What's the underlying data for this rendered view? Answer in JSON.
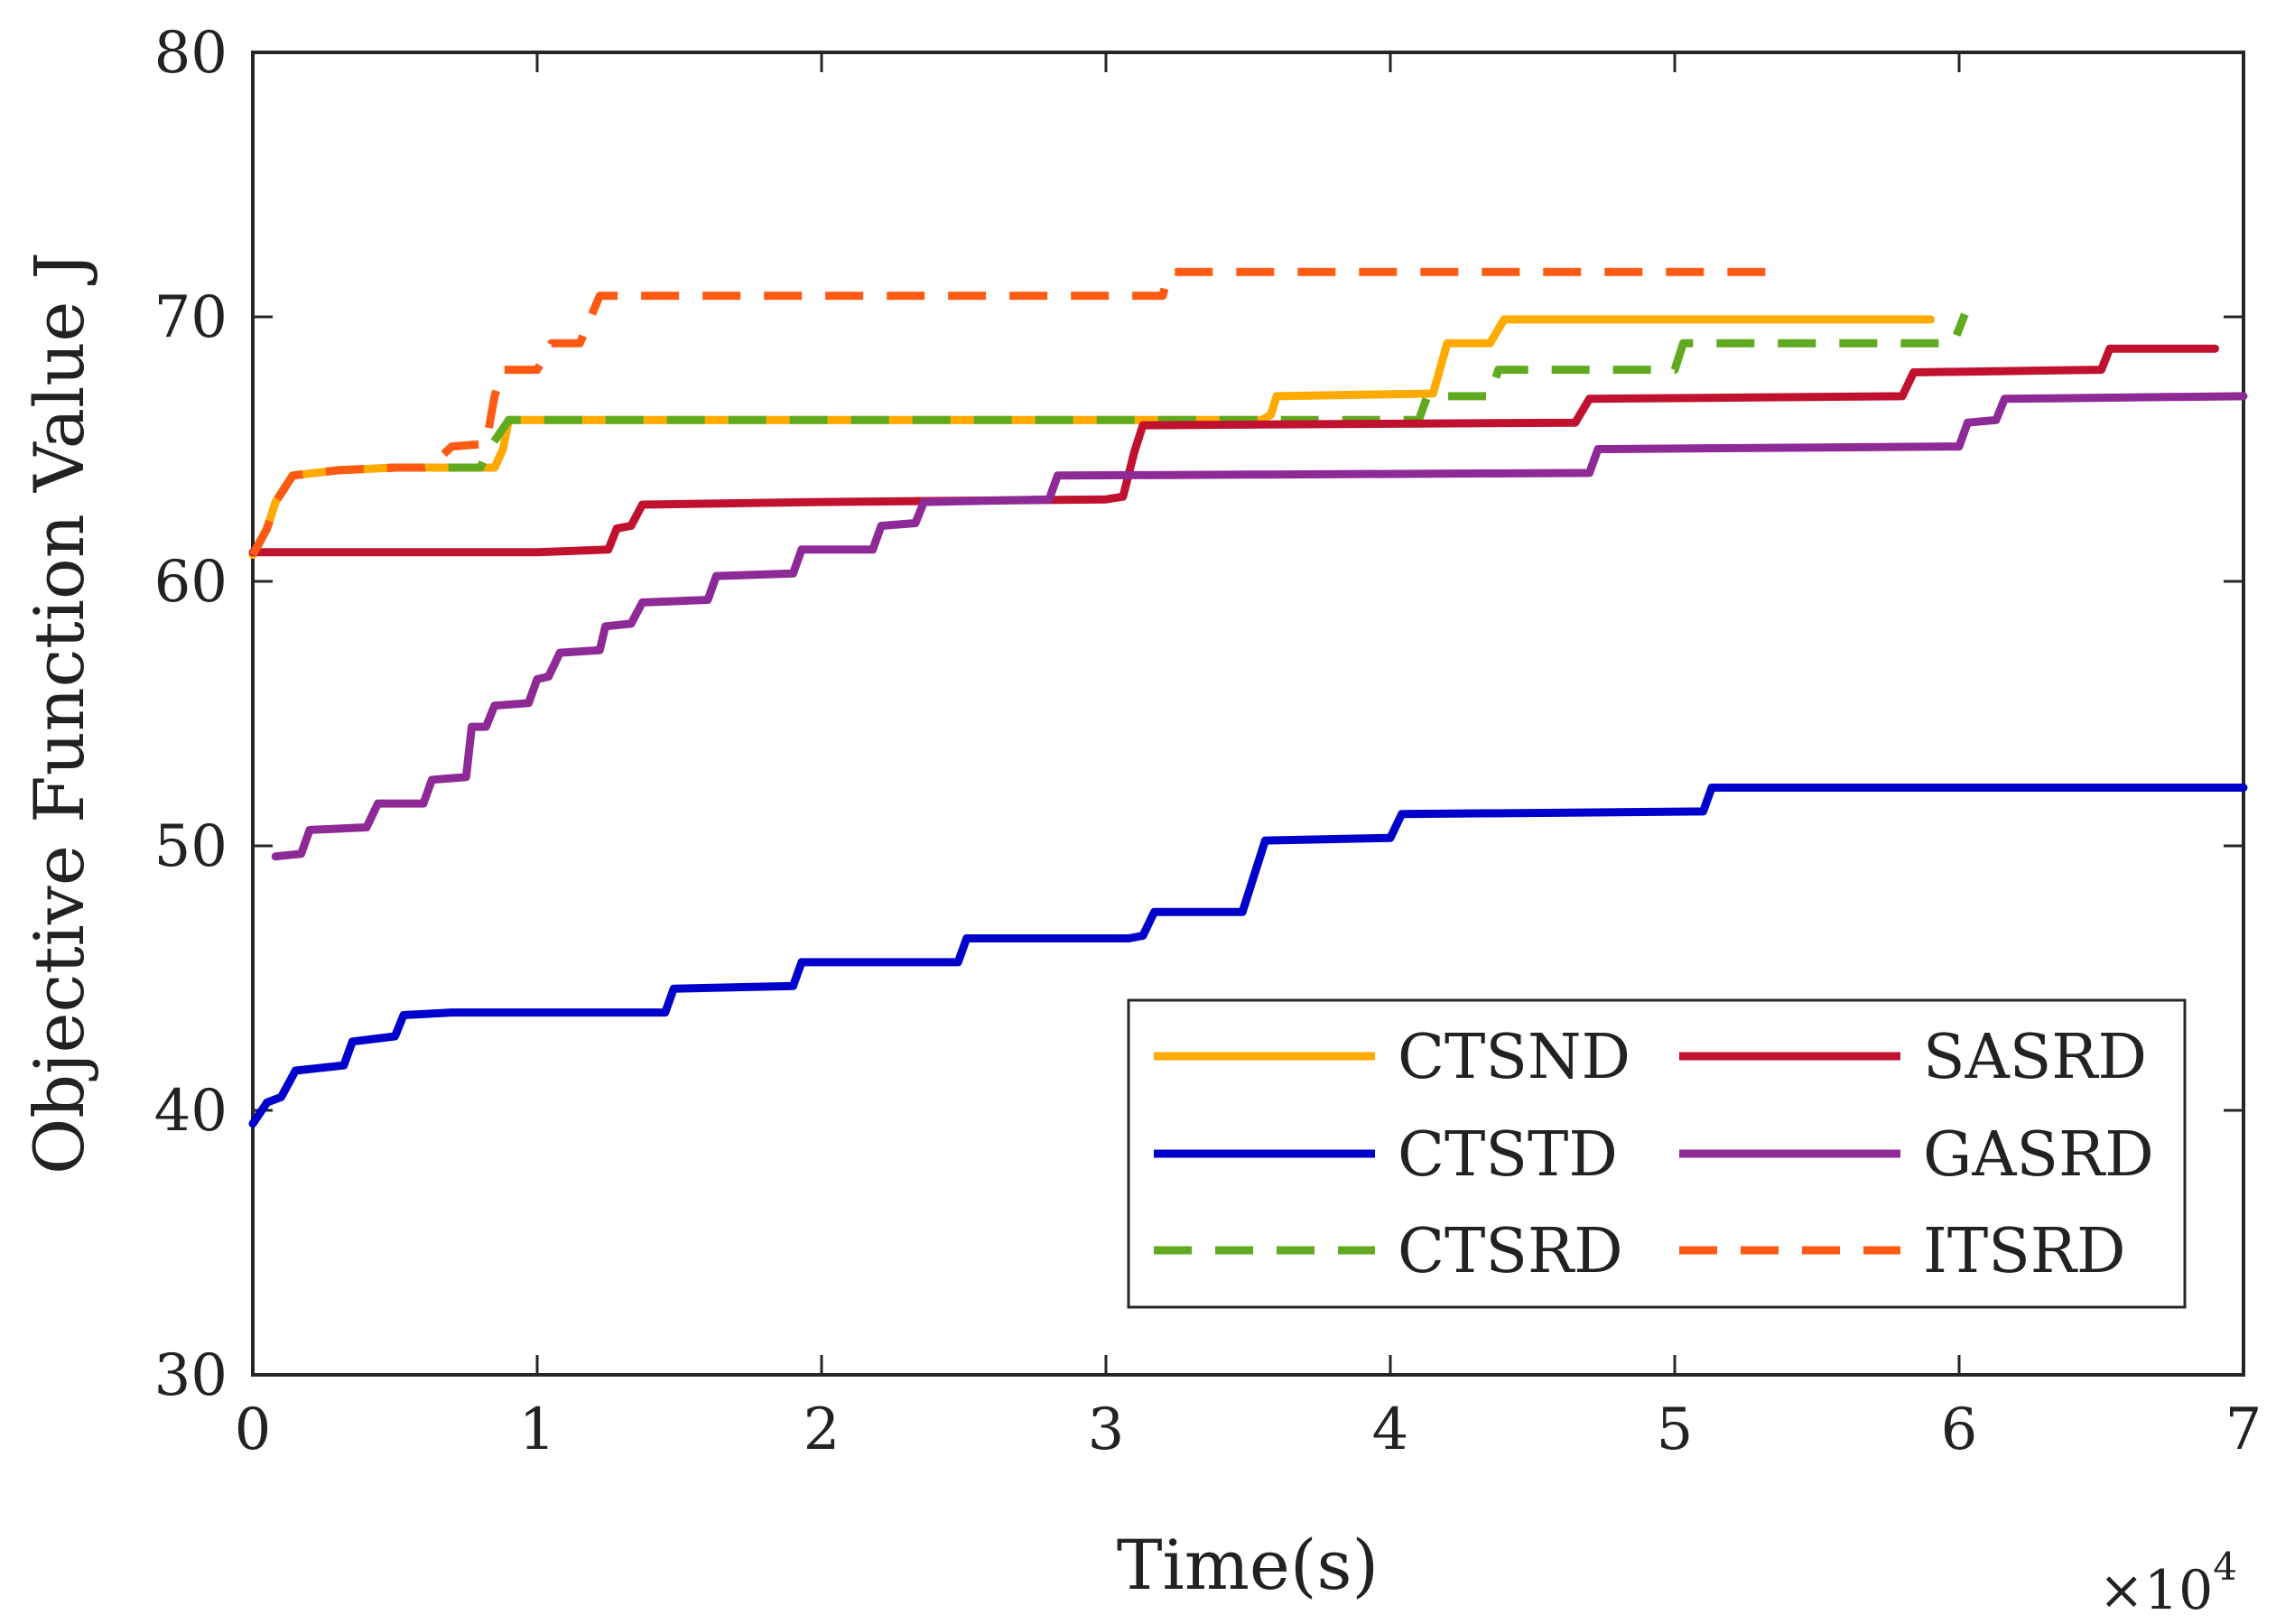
{
  "chart_data": {
    "type": "line",
    "title": "",
    "xlabel": "Time(s)",
    "ylabel": "Objective Function Value J",
    "x_multiplier_base": "×10",
    "x_multiplier_exp": "4",
    "xlim": [
      0,
      70000
    ],
    "ylim": [
      30,
      80
    ],
    "xticks": [
      0,
      10000,
      20000,
      30000,
      40000,
      50000,
      60000,
      70000
    ],
    "xtick_labels": [
      "0",
      "1",
      "2",
      "3",
      "4",
      "5",
      "6",
      "7"
    ],
    "yticks": [
      30,
      40,
      50,
      60,
      70,
      80
    ],
    "ytick_labels": [
      "30",
      "40",
      "50",
      "60",
      "70",
      "80"
    ],
    "grid": false,
    "legend_position": "bottom-right",
    "series": [
      {
        "name": "CTSND",
        "color": "#FFAA00",
        "dash": "solid",
        "width": 9,
        "points": [
          [
            0,
            61
          ],
          [
            500,
            62
          ],
          [
            800,
            63
          ],
          [
            1400,
            64
          ],
          [
            3000,
            64.2
          ],
          [
            5000,
            64.3
          ],
          [
            7000,
            64.3
          ],
          [
            8500,
            64.3
          ],
          [
            8800,
            65
          ],
          [
            9000,
            66.1
          ],
          [
            35500,
            66.1
          ],
          [
            35800,
            66.3
          ],
          [
            36000,
            67
          ],
          [
            41500,
            67.1
          ],
          [
            42000,
            69
          ],
          [
            43500,
            69
          ],
          [
            44000,
            69.9
          ],
          [
            59000,
            69.9
          ]
        ]
      },
      {
        "name": "CTSTD",
        "color": "#0000CC",
        "dash": "solid",
        "width": 9,
        "points": [
          [
            0,
            39.5
          ],
          [
            500,
            40.3
          ],
          [
            1000,
            40.5
          ],
          [
            1500,
            41.5
          ],
          [
            3200,
            41.7
          ],
          [
            3500,
            42.6
          ],
          [
            5000,
            42.8
          ],
          [
            5300,
            43.6
          ],
          [
            7000,
            43.7
          ],
          [
            14500,
            43.7
          ],
          [
            14800,
            44.6
          ],
          [
            19000,
            44.7
          ],
          [
            19300,
            45.6
          ],
          [
            24800,
            45.6
          ],
          [
            25100,
            46.5
          ],
          [
            30800,
            46.5
          ],
          [
            31300,
            46.6
          ],
          [
            31700,
            47.5
          ],
          [
            34800,
            47.5
          ],
          [
            35600,
            50.2
          ],
          [
            40000,
            50.3
          ],
          [
            40400,
            51.2
          ],
          [
            51000,
            51.3
          ],
          [
            51300,
            52.2
          ],
          [
            70000,
            52.2
          ]
        ]
      },
      {
        "name": "CTSRD",
        "color": "#5FAA1E",
        "dash": "dashed",
        "width": 9,
        "points": [
          [
            0,
            61
          ],
          [
            500,
            62
          ],
          [
            800,
            63
          ],
          [
            1400,
            64
          ],
          [
            3000,
            64.2
          ],
          [
            5000,
            64.3
          ],
          [
            7000,
            64.3
          ],
          [
            8000,
            64.3
          ],
          [
            8300,
            65
          ],
          [
            9000,
            66.1
          ],
          [
            41000,
            66.1
          ],
          [
            41300,
            67
          ],
          [
            43500,
            67
          ],
          [
            43800,
            68
          ],
          [
            50000,
            68
          ],
          [
            50300,
            69
          ],
          [
            59800,
            69
          ],
          [
            60200,
            70.1
          ]
        ]
      },
      {
        "name": "SASRD",
        "color": "#C0122E",
        "dash": "solid",
        "width": 9,
        "points": [
          [
            0,
            61.1
          ],
          [
            5000,
            61.1
          ],
          [
            10000,
            61.1
          ],
          [
            12500,
            61.2
          ],
          [
            12800,
            62
          ],
          [
            13300,
            62.1
          ],
          [
            13700,
            62.9
          ],
          [
            20000,
            63
          ],
          [
            30000,
            63.1
          ],
          [
            30600,
            63.2
          ],
          [
            31000,
            64.9
          ],
          [
            31300,
            65.9
          ],
          [
            46500,
            66
          ],
          [
            47000,
            66.9
          ],
          [
            58000,
            67
          ],
          [
            58400,
            67.9
          ],
          [
            65000,
            68
          ],
          [
            65300,
            68.8
          ],
          [
            69000,
            68.8
          ]
        ]
      },
      {
        "name": "GASRD",
        "color": "#8E2A96",
        "dash": "solid",
        "width": 9,
        "points": [
          [
            800,
            49.6
          ],
          [
            1700,
            49.7
          ],
          [
            2000,
            50.6
          ],
          [
            4000,
            50.7
          ],
          [
            4400,
            51.6
          ],
          [
            6000,
            51.6
          ],
          [
            6300,
            52.5
          ],
          [
            7500,
            52.6
          ],
          [
            7700,
            54.5
          ],
          [
            8200,
            54.5
          ],
          [
            8500,
            55.3
          ],
          [
            9700,
            55.4
          ],
          [
            10000,
            56.3
          ],
          [
            10400,
            56.4
          ],
          [
            10800,
            57.3
          ],
          [
            12200,
            57.4
          ],
          [
            12400,
            58.3
          ],
          [
            13300,
            58.4
          ],
          [
            13700,
            59.2
          ],
          [
            16000,
            59.3
          ],
          [
            16300,
            60.2
          ],
          [
            19000,
            60.3
          ],
          [
            19300,
            61.2
          ],
          [
            21800,
            61.2
          ],
          [
            22100,
            62.1
          ],
          [
            23300,
            62.2
          ],
          [
            23600,
            63
          ],
          [
            28000,
            63.1
          ],
          [
            28300,
            64
          ],
          [
            47000,
            64.1
          ],
          [
            47300,
            65
          ],
          [
            60000,
            65.1
          ],
          [
            60300,
            66
          ],
          [
            61300,
            66.1
          ],
          [
            61600,
            66.9
          ],
          [
            70000,
            67
          ]
        ]
      },
      {
        "name": "ITSRD",
        "color": "#FF5A14",
        "dash": "dashed",
        "width": 9,
        "points": [
          [
            0,
            61
          ],
          [
            500,
            62
          ],
          [
            800,
            63
          ],
          [
            1400,
            64
          ],
          [
            3000,
            64.2
          ],
          [
            5000,
            64.3
          ],
          [
            6000,
            64.3
          ],
          [
            6300,
            64.4
          ],
          [
            7000,
            65.1
          ],
          [
            8200,
            65.2
          ],
          [
            8500,
            67
          ],
          [
            8800,
            68
          ],
          [
            10000,
            68
          ],
          [
            10500,
            69
          ],
          [
            11500,
            69
          ],
          [
            12200,
            70.8
          ],
          [
            32000,
            70.8
          ],
          [
            32200,
            71.7
          ],
          [
            53500,
            71.7
          ]
        ]
      }
    ]
  }
}
